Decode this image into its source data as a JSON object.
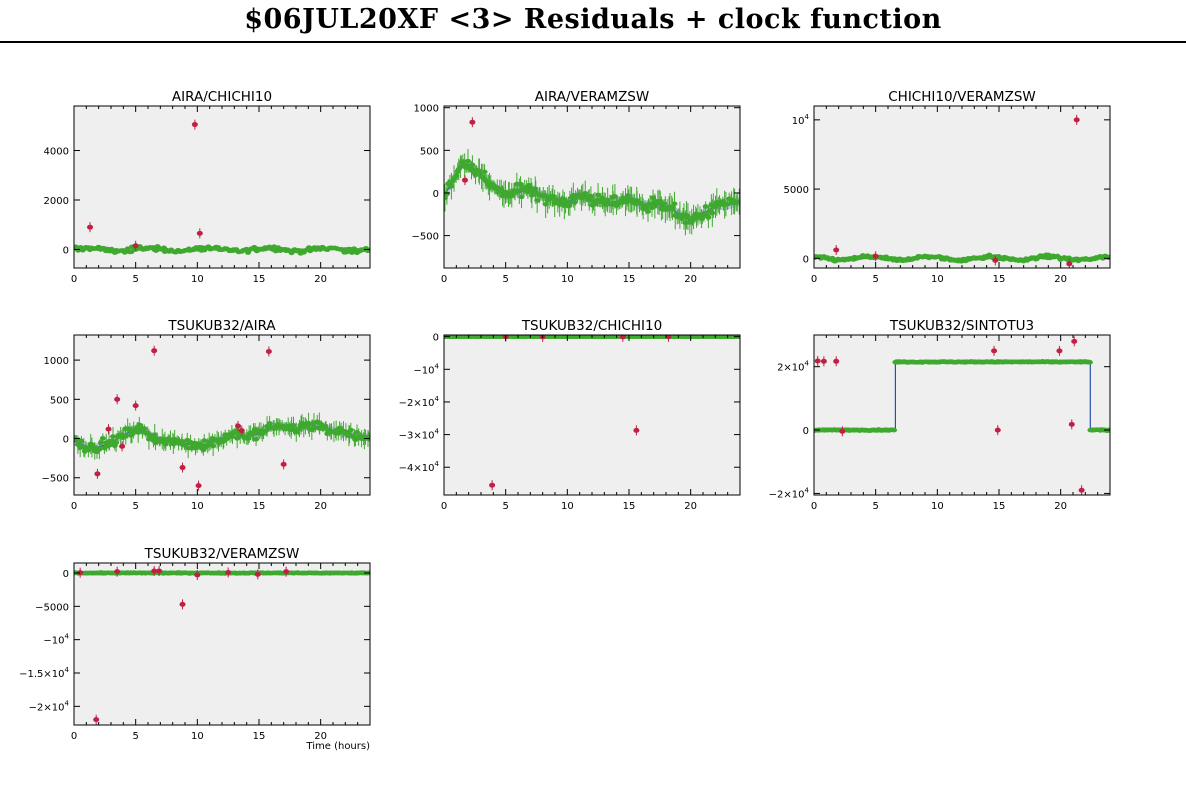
{
  "header": {
    "title": "$06JUL20XF <3> Residuals + clock function"
  },
  "colors": {
    "good_points": "#3fa92f",
    "flagged_points": "#c21f45",
    "clock_line": "#2a4fb0",
    "clock_band": "#b9c6e2",
    "panel_background": "#efefef"
  },
  "chart_data": [
    {
      "type": "scatter",
      "title": "AIRA/CHICHI10",
      "xlim": [
        0,
        24
      ],
      "ylim": [
        -750,
        5800
      ],
      "x_ticks": [
        {
          "v": 0,
          "label": "0"
        },
        {
          "v": 5,
          "label": "5"
        },
        {
          "v": 10,
          "label": "10"
        },
        {
          "v": 15,
          "label": "15"
        },
        {
          "v": 20,
          "label": "20"
        }
      ],
      "y_ticks": [
        {
          "v": 0,
          "label": "0"
        },
        {
          "v": 2000,
          "label": "2000"
        },
        {
          "v": 4000,
          "label": "4000"
        }
      ],
      "clock": null,
      "residuals": {
        "x_range": [
          0,
          24
        ],
        "mean": 0,
        "amplitude": 60,
        "noise": 90,
        "count": 190,
        "err": 60
      },
      "flagged": [
        [
          1.3,
          900
        ],
        [
          5.0,
          150
        ],
        [
          9.8,
          5050
        ],
        [
          10.2,
          650
        ]
      ]
    },
    {
      "type": "scatter",
      "title": "AIRA/VERAMZSW",
      "xlim": [
        0,
        24
      ],
      "ylim": [
        -880,
        1020
      ],
      "x_ticks": [
        {
          "v": 0,
          "label": "0"
        },
        {
          "v": 5,
          "label": "5"
        },
        {
          "v": 10,
          "label": "10"
        },
        {
          "v": 15,
          "label": "15"
        },
        {
          "v": 20,
          "label": "20"
        }
      ],
      "y_ticks": [
        {
          "v": -500,
          "label": "−500"
        },
        {
          "v": 0,
          "label": "0"
        },
        {
          "v": 500,
          "label": "500"
        },
        {
          "v": 1000,
          "label": "1000"
        }
      ],
      "clock": {
        "band": 55,
        "points": [
          [
            0,
            -20
          ],
          [
            0.5,
            80
          ],
          [
            1,
            240
          ],
          [
            1.5,
            340
          ],
          [
            2,
            330
          ],
          [
            3,
            220
          ],
          [
            4,
            60
          ],
          [
            5,
            -30
          ],
          [
            6,
            20
          ],
          [
            7,
            60
          ],
          [
            8,
            -40
          ],
          [
            9,
            -80
          ],
          [
            10,
            -120
          ],
          [
            11,
            -20
          ],
          [
            12,
            -80
          ],
          [
            13,
            -120
          ],
          [
            14,
            -100
          ],
          [
            15,
            -60
          ],
          [
            16,
            -150
          ],
          [
            17,
            -120
          ],
          [
            18,
            -160
          ],
          [
            19,
            -240
          ],
          [
            20,
            -330
          ],
          [
            21,
            -250
          ],
          [
            22,
            -150
          ],
          [
            23,
            -140
          ],
          [
            24,
            -100
          ]
        ]
      },
      "residuals": {
        "x_range": [
          0,
          24
        ],
        "mean": 0,
        "amplitude": 0,
        "noise": 70,
        "count": 210,
        "err": 110,
        "follow_clock": true
      },
      "flagged": [
        [
          1.7,
          150
        ],
        [
          2.3,
          830
        ]
      ]
    },
    {
      "type": "scatter",
      "title": "CHICHI10/VERAMZSW",
      "xlim": [
        0,
        24
      ],
      "ylim": [
        -700,
        11000
      ],
      "x_ticks": [
        {
          "v": 0,
          "label": "0"
        },
        {
          "v": 5,
          "label": "5"
        },
        {
          "v": 10,
          "label": "10"
        },
        {
          "v": 15,
          "label": "15"
        },
        {
          "v": 20,
          "label": "20"
        }
      ],
      "y_ticks": [
        {
          "v": 0,
          "label": "0",
          "sup": ""
        },
        {
          "v": 5000,
          "label": "5000",
          "sup": ""
        },
        {
          "v": 10000,
          "label": "10",
          "sup": "4"
        }
      ],
      "clock": null,
      "residuals": {
        "x_range": [
          0,
          24
        ],
        "mean": 0,
        "amplitude": 120,
        "noise": 110,
        "count": 230,
        "err": 60
      },
      "flagged": [
        [
          1.8,
          600
        ],
        [
          5.0,
          150
        ],
        [
          14.7,
          -150
        ],
        [
          20.7,
          -400
        ],
        [
          21.3,
          10000
        ]
      ]
    },
    {
      "type": "scatter",
      "title": "TSUKUB32/AIRA",
      "xlim": [
        0,
        24
      ],
      "ylim": [
        -720,
        1320
      ],
      "x_ticks": [
        {
          "v": 0,
          "label": "0"
        },
        {
          "v": 5,
          "label": "5"
        },
        {
          "v": 10,
          "label": "10"
        },
        {
          "v": 15,
          "label": "15"
        },
        {
          "v": 20,
          "label": "20"
        }
      ],
      "y_ticks": [
        {
          "v": -500,
          "label": "−500"
        },
        {
          "v": 0,
          "label": "0"
        },
        {
          "v": 500,
          "label": "500"
        },
        {
          "v": 1000,
          "label": "1000"
        }
      ],
      "clock": {
        "band": 50,
        "points": [
          [
            0,
            -30
          ],
          [
            1,
            -100
          ],
          [
            2,
            -110
          ],
          [
            3,
            -50
          ],
          [
            4,
            40
          ],
          [
            5,
            130
          ],
          [
            6,
            60
          ],
          [
            7,
            -20
          ],
          [
            8,
            -40
          ],
          [
            9,
            -60
          ],
          [
            10,
            -100
          ],
          [
            11,
            -60
          ],
          [
            12,
            0
          ],
          [
            13,
            60
          ],
          [
            14,
            30
          ],
          [
            15,
            60
          ],
          [
            16,
            150
          ],
          [
            17,
            160
          ],
          [
            18,
            130
          ],
          [
            19,
            170
          ],
          [
            20,
            150
          ],
          [
            21,
            100
          ],
          [
            22,
            60
          ],
          [
            23,
            20
          ],
          [
            24,
            20
          ]
        ]
      },
      "residuals": {
        "x_range": [
          0,
          24
        ],
        "mean": 0,
        "amplitude": 0,
        "noise": 60,
        "count": 200,
        "err": 90,
        "follow_clock": true
      },
      "flagged": [
        [
          1.9,
          -450
        ],
        [
          2.8,
          120
        ],
        [
          3.5,
          500
        ],
        [
          3.9,
          -100
        ],
        [
          5.0,
          420
        ],
        [
          6.5,
          1120
        ],
        [
          8.8,
          -370
        ],
        [
          10.1,
          -600
        ],
        [
          13.3,
          160
        ],
        [
          13.6,
          100
        ],
        [
          15.8,
          1110
        ],
        [
          17.0,
          -330
        ]
      ]
    },
    {
      "type": "scatter",
      "title": "TSUKUB32/CHICHI10",
      "xlim": [
        0,
        24
      ],
      "ylim": [
        -48500,
        500
      ],
      "x_ticks": [
        {
          "v": 0,
          "label": "0"
        },
        {
          "v": 5,
          "label": "5"
        },
        {
          "v": 10,
          "label": "10"
        },
        {
          "v": 15,
          "label": "15"
        },
        {
          "v": 20,
          "label": "20"
        }
      ],
      "y_ticks": [
        {
          "v": 0,
          "label": "0",
          "sup": ""
        },
        {
          "v": -10000,
          "label": "−10",
          "sup": "4"
        },
        {
          "v": -20000,
          "label": "−2×10",
          "sup": "4"
        },
        {
          "v": -30000,
          "label": "−3×10",
          "sup": "4"
        },
        {
          "v": -40000,
          "label": "−4×10",
          "sup": "4"
        }
      ],
      "clock": null,
      "residuals": {
        "x_range": [
          0,
          24
        ],
        "mean": 0,
        "amplitude": 0,
        "noise": 40,
        "count": 260,
        "err": 0
      },
      "flagged": [
        [
          3.9,
          -45500
        ],
        [
          15.6,
          -28700
        ],
        [
          5.0,
          0
        ],
        [
          8.0,
          -80
        ],
        [
          14.5,
          -60
        ],
        [
          18.2,
          -40
        ]
      ]
    },
    {
      "type": "scatter",
      "title": "TSUKUB32/SINTOTU3",
      "xlim": [
        0,
        24
      ],
      "ylim": [
        -20500,
        30000
      ],
      "x_ticks": [
        {
          "v": 0,
          "label": "0"
        },
        {
          "v": 5,
          "label": "5"
        },
        {
          "v": 10,
          "label": "10"
        },
        {
          "v": 15,
          "label": "15"
        },
        {
          "v": 20,
          "label": "20"
        }
      ],
      "y_ticks": [
        {
          "v": 0,
          "label": "0",
          "sup": ""
        },
        {
          "v": 20000,
          "label": "2×10",
          "sup": "4"
        },
        {
          "v": -20000,
          "label": "−2×10",
          "sup": "4"
        }
      ],
      "clock": {
        "band": 0,
        "points": [
          [
            0,
            0
          ],
          [
            6.6,
            0
          ],
          [
            6.6,
            21500
          ],
          [
            22.4,
            21500
          ],
          [
            22.4,
            0
          ],
          [
            24,
            0
          ]
        ]
      },
      "residuals": {
        "x_range": [
          0,
          24
        ],
        "mean": 0,
        "amplitude": 0,
        "noise": 150,
        "count": 300,
        "err": 0,
        "follow_clock": true
      },
      "flagged": [
        [
          0.3,
          21800
        ],
        [
          0.8,
          21700
        ],
        [
          1.8,
          21700
        ],
        [
          2.3,
          -400
        ],
        [
          14.6,
          25000
        ],
        [
          14.9,
          -30
        ],
        [
          19.9,
          25000
        ],
        [
          20.9,
          1800
        ],
        [
          21.1,
          28000
        ],
        [
          21.7,
          -19000
        ]
      ]
    },
    {
      "type": "scatter",
      "title": "TSUKUB32/VERAMZSW",
      "xlabel": "Time (hours)",
      "xlim": [
        0,
        24
      ],
      "ylim": [
        -22800,
        1500
      ],
      "x_ticks": [
        {
          "v": 0,
          "label": "0"
        },
        {
          "v": 5,
          "label": "5"
        },
        {
          "v": 10,
          "label": "10"
        },
        {
          "v": 15,
          "label": "15"
        },
        {
          "v": 20,
          "label": "20"
        }
      ],
      "y_ticks": [
        {
          "v": 0,
          "label": "0",
          "sup": ""
        },
        {
          "v": -5000,
          "label": "−5000",
          "sup": ""
        },
        {
          "v": -10000,
          "label": "−10",
          "sup": "4"
        },
        {
          "v": -15000,
          "label": "−1.5×10",
          "sup": "4"
        },
        {
          "v": -20000,
          "label": "−2×10",
          "sup": "4"
        }
      ],
      "clock": null,
      "residuals": {
        "x_range": [
          0,
          24
        ],
        "mean": 0,
        "amplitude": 0,
        "noise": 60,
        "count": 260,
        "err": 0
      },
      "flagged": [
        [
          0.5,
          50
        ],
        [
          1.8,
          -22000
        ],
        [
          3.5,
          200
        ],
        [
          6.5,
          300
        ],
        [
          6.9,
          300
        ],
        [
          8.8,
          -4700
        ],
        [
          10.0,
          -300
        ],
        [
          12.5,
          80
        ],
        [
          14.9,
          -200
        ],
        [
          17.2,
          200
        ]
      ]
    }
  ]
}
